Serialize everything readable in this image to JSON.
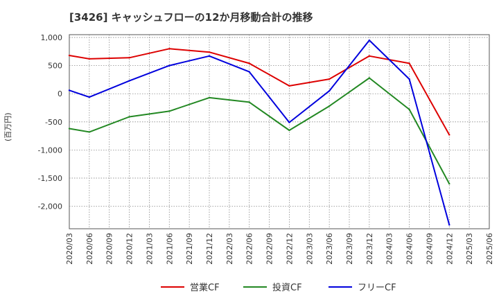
{
  "chart_data": {
    "type": "line",
    "title": "[3426]  キャッシュフローの12か月移動合計の推移",
    "ylabel": "(百万円)",
    "xlabel": "",
    "ylim": [
      -2400,
      1050
    ],
    "yticks": [
      1000,
      500,
      0,
      -500,
      -1000,
      -1500,
      -2000
    ],
    "ytick_labels": [
      "1,000",
      "500",
      "0",
      "-500",
      "-1,000",
      "-1,500",
      "-2,000"
    ],
    "categories": [
      "2020/03",
      "2020/06",
      "2020/09",
      "2020/12",
      "2021/03",
      "2021/06",
      "2021/09",
      "2021/12",
      "2022/03",
      "2022/06",
      "2022/09",
      "2022/12",
      "2023/03",
      "2023/06",
      "2023/09",
      "2023/12",
      "2024/03",
      "2024/06",
      "2024/09",
      "2024/12",
      "2025/03",
      "2025/06"
    ],
    "legend_position": "bottom",
    "grid": true,
    "series": [
      {
        "name": "営業CF",
        "color": "#dd0000",
        "values": [
          680,
          620,
          null,
          640,
          null,
          800,
          null,
          740,
          null,
          540,
          null,
          140,
          null,
          260,
          null,
          670,
          null,
          540,
          null,
          -730,
          null,
          null
        ]
      },
      {
        "name": "投資CF",
        "color": "#228822",
        "values": [
          -620,
          -680,
          null,
          -410,
          null,
          -310,
          null,
          -70,
          null,
          -150,
          null,
          -650,
          null,
          -220,
          null,
          280,
          null,
          -280,
          null,
          -1600,
          null,
          null
        ]
      },
      {
        "name": "フリーCF",
        "color": "#0000dd",
        "values": [
          60,
          -60,
          null,
          230,
          null,
          500,
          null,
          670,
          null,
          390,
          null,
          -510,
          null,
          50,
          null,
          950,
          null,
          260,
          null,
          -2330,
          null,
          null
        ]
      }
    ]
  }
}
